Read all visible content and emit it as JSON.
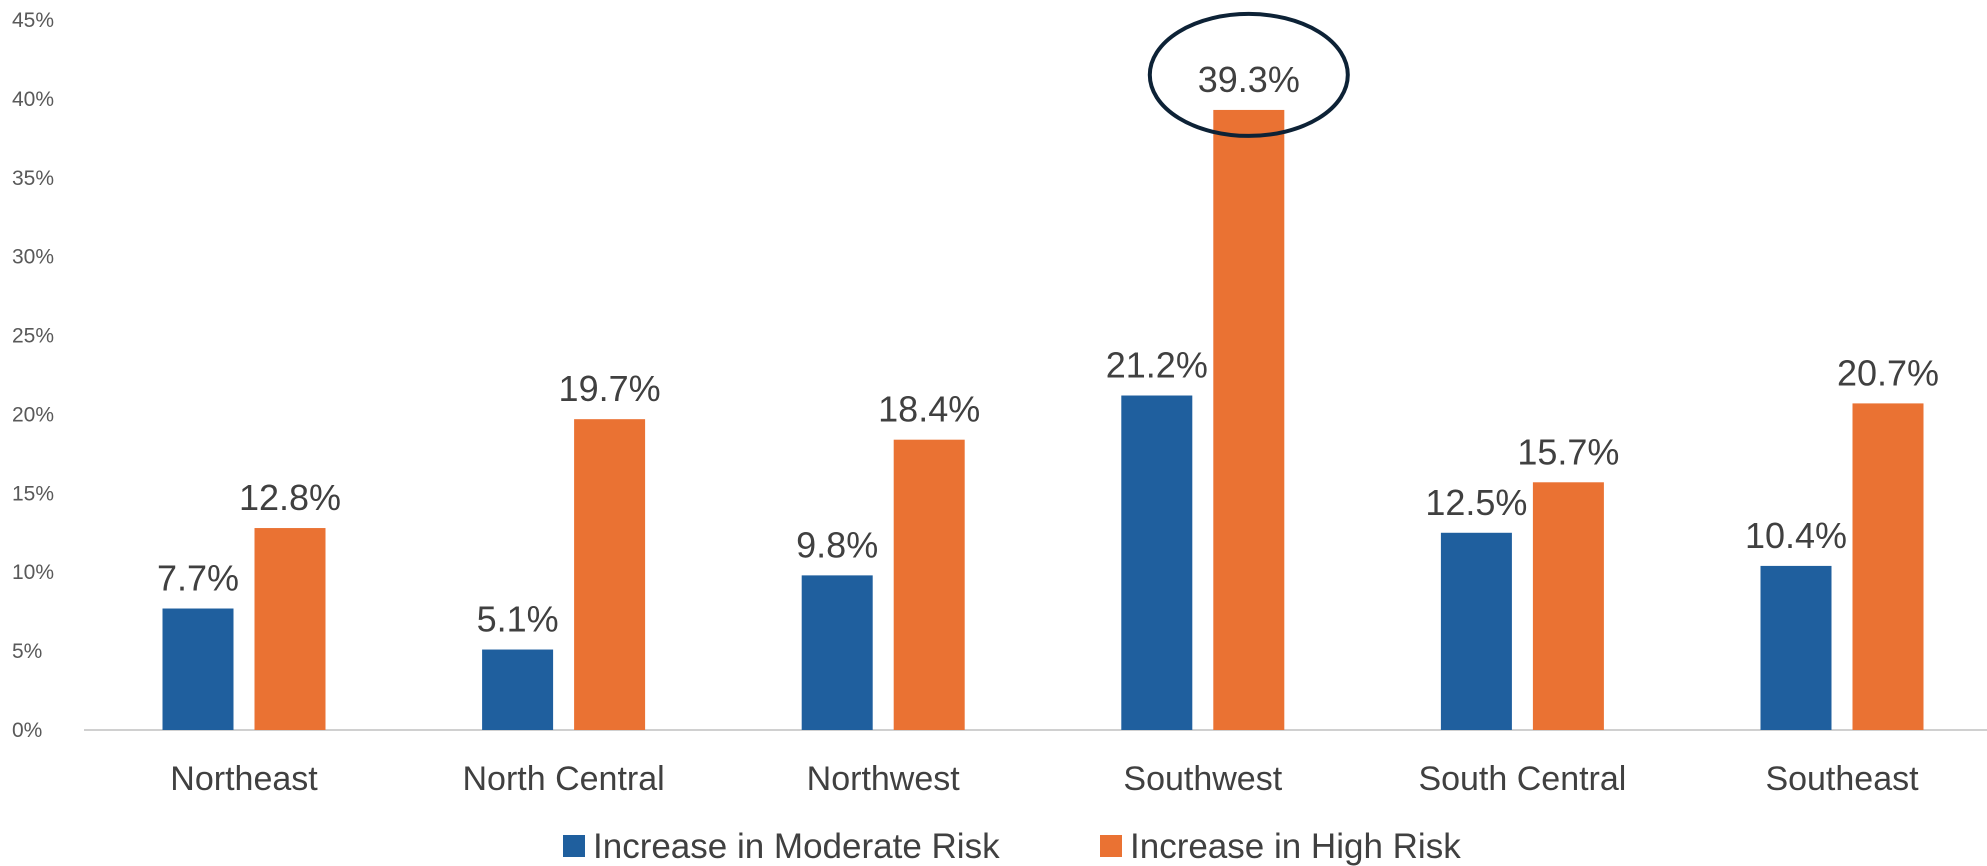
{
  "chart_data": {
    "type": "bar",
    "ylim": [
      0,
      45
    ],
    "y_ticks": [
      "0%",
      "5%",
      "10%",
      "15%",
      "20%",
      "25%",
      "30%",
      "35%",
      "40%",
      "45%"
    ],
    "grid": false,
    "legend_position": "bottom",
    "categories": [
      "Northeast",
      "North Central",
      "Northwest",
      "Southwest",
      "South Central",
      "Southeast"
    ],
    "series": [
      {
        "name": "Increase in Moderate Risk",
        "color": "#1F5F9E",
        "values": [
          7.7,
          5.1,
          9.8,
          21.2,
          12.5,
          10.4
        ],
        "labels": [
          "7.7%",
          "5.1%",
          "9.8%",
          "21.2%",
          "12.5%",
          "10.4%"
        ]
      },
      {
        "name": "Increase in High Risk",
        "color": "#EA7233",
        "values": [
          12.8,
          19.7,
          18.4,
          39.3,
          15.7,
          20.7
        ],
        "labels": [
          "12.8%",
          "19.7%",
          "18.4%",
          "39.3%",
          "15.7%",
          "20.7%"
        ]
      }
    ],
    "highlight": {
      "category": "Southwest",
      "series": "Increase in High Risk",
      "shape": "ellipse",
      "color": "#0D2236"
    }
  }
}
